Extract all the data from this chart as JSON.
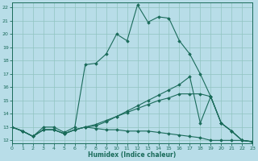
{
  "xlabel": "Humidex (Indice chaleur)",
  "xlim": [
    0,
    23
  ],
  "ylim": [
    11.8,
    22.4
  ],
  "yticks": [
    12,
    13,
    14,
    15,
    16,
    17,
    18,
    19,
    20,
    21,
    22
  ],
  "xticks": [
    0,
    1,
    2,
    3,
    4,
    5,
    6,
    7,
    8,
    9,
    10,
    11,
    12,
    13,
    14,
    15,
    16,
    17,
    18,
    19,
    20,
    21,
    22,
    23
  ],
  "bg_color": "#b8dde8",
  "grid_color": "#90c4c0",
  "line_color": "#1a6b5a",
  "lines": [
    [
      13.0,
      12.7,
      12.3,
      13.0,
      13.0,
      12.6,
      13.0,
      17.7,
      17.8,
      18.5,
      20.0,
      19.5,
      22.2,
      20.9,
      21.3,
      21.2,
      19.5,
      18.5,
      17.0,
      15.3,
      13.3,
      12.7,
      12.0,
      11.9
    ],
    [
      13.0,
      12.7,
      12.3,
      12.8,
      12.8,
      12.5,
      12.8,
      13.0,
      12.9,
      12.8,
      12.8,
      12.7,
      12.7,
      12.7,
      12.6,
      12.5,
      12.4,
      12.3,
      12.2,
      12.0,
      12.0,
      12.0,
      12.0,
      11.9
    ],
    [
      13.0,
      12.7,
      12.3,
      12.8,
      12.8,
      12.5,
      12.8,
      13.0,
      13.1,
      13.4,
      13.8,
      14.2,
      14.6,
      15.0,
      15.4,
      15.8,
      16.2,
      16.8,
      13.3,
      15.3,
      13.3,
      12.7,
      12.0,
      11.9
    ],
    [
      13.0,
      12.7,
      12.3,
      12.8,
      12.8,
      12.5,
      12.8,
      13.0,
      13.2,
      13.5,
      13.8,
      14.1,
      14.4,
      14.7,
      15.0,
      15.2,
      15.5,
      15.5,
      15.5,
      15.3,
      13.3,
      12.7,
      12.0,
      11.9
    ]
  ]
}
